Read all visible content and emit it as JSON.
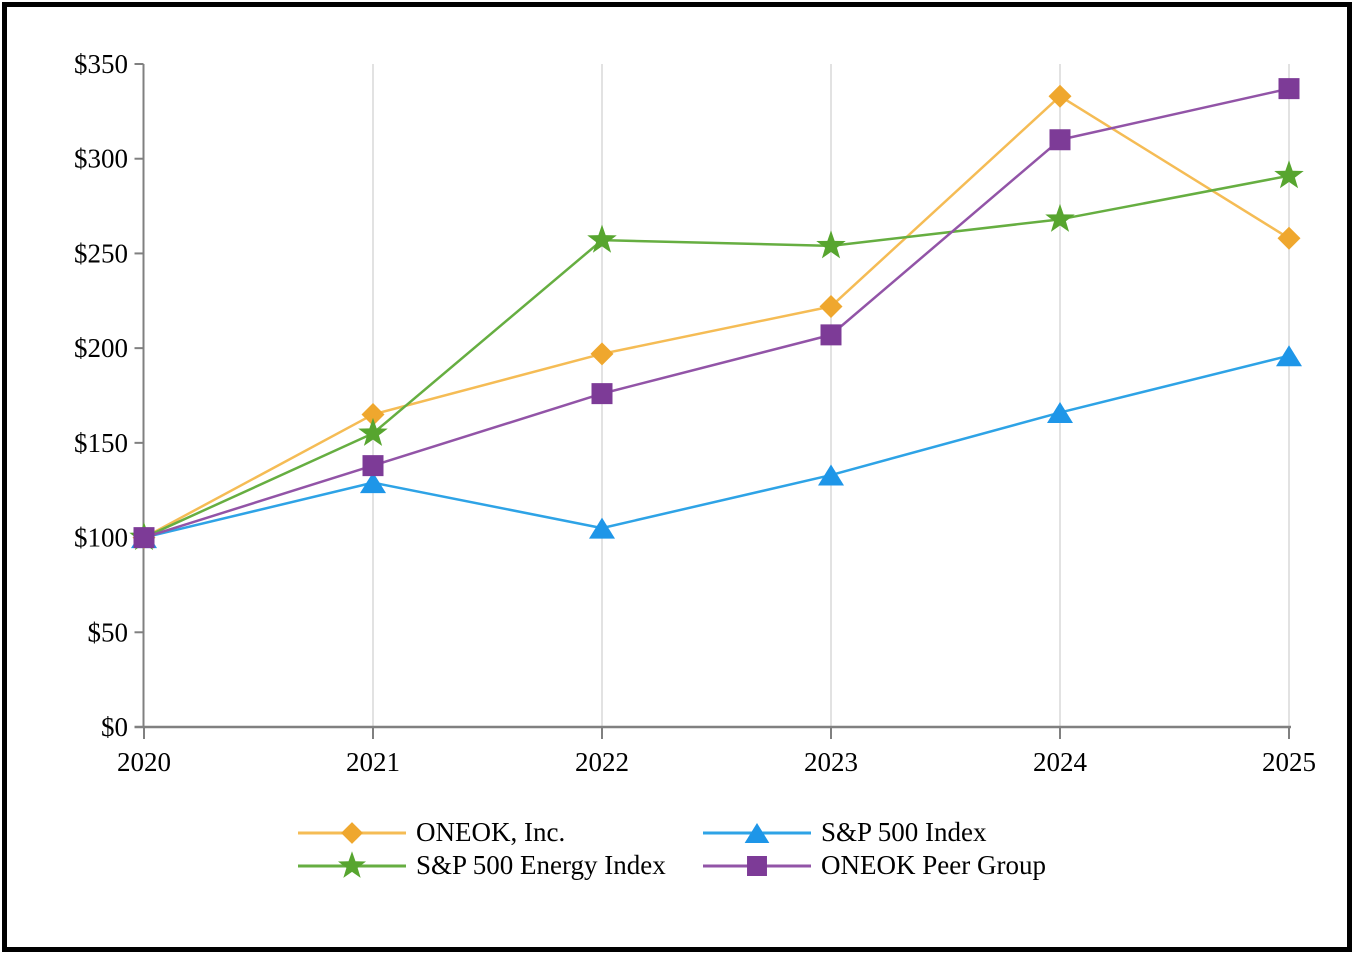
{
  "chart_data": {
    "type": "line",
    "title": "",
    "xlabel": "",
    "ylabel": "",
    "categories": [
      "2020",
      "2021",
      "2022",
      "2023",
      "2024",
      "2025"
    ],
    "series": [
      {
        "name": "ONEOK, Inc.",
        "marker": "diamond",
        "color": "#EFA72E",
        "line_color": "#F5BC55",
        "values": [
          100,
          165,
          197,
          222,
          333,
          258
        ]
      },
      {
        "name": "S&P 500 Index",
        "marker": "triangle",
        "color": "#1E96E8",
        "line_color": "#2EA3E6",
        "values": [
          100,
          129,
          105,
          133,
          166,
          196
        ]
      },
      {
        "name": "S&P 500 Energy Index",
        "marker": "star",
        "color": "#57A52F",
        "line_color": "#66AE41",
        "values": [
          100,
          155,
          257,
          254,
          268,
          291
        ]
      },
      {
        "name": "ONEOK Peer Group",
        "marker": "square",
        "color": "#7D3B97",
        "line_color": "#9254A7",
        "values": [
          100,
          138,
          176,
          207,
          310,
          337
        ]
      }
    ],
    "ylim": [
      0,
      350
    ],
    "y_tick_interval": 50,
    "y_tick_labels": [
      "$0",
      "$50",
      "$100",
      "$150",
      "$200",
      "$250",
      "$300",
      "$350"
    ],
    "grid": "vertical-only",
    "legend_position": "bottom",
    "axis_color": "#808080",
    "gridline_color": "#D9D9D9"
  }
}
